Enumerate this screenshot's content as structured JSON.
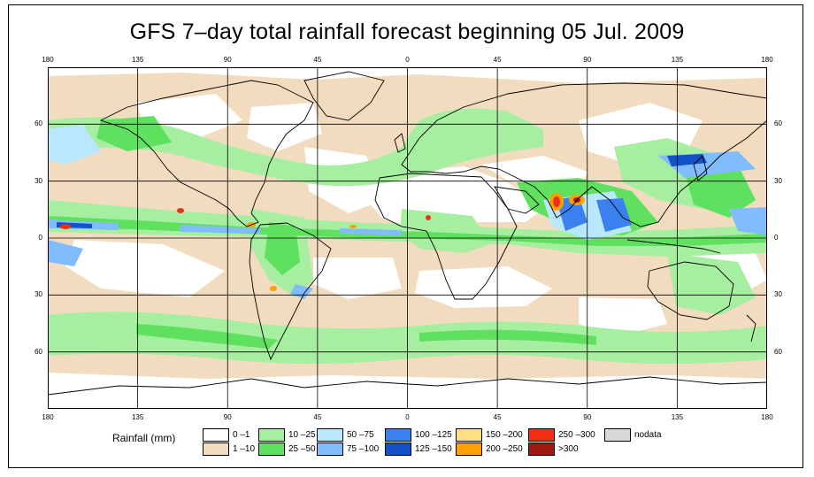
{
  "title": "GFS 7–day total rainfall forecast beginning 05 Jul. 2009",
  "lon_ticks": [
    "180",
    "135",
    "90",
    "45",
    "0",
    "45",
    "90",
    "135",
    "180"
  ],
  "lat_ticks": [
    "60",
    "30",
    "0",
    "30",
    "60"
  ],
  "lon_values": [
    -180,
    -135,
    -90,
    -45,
    0,
    45,
    90,
    135,
    180
  ],
  "lat_values": [
    60,
    30,
    0,
    -30,
    -60
  ],
  "map_extent": {
    "lon": [
      -180,
      180
    ],
    "lat": [
      -90,
      90
    ]
  },
  "grid": true,
  "legend": {
    "title": "Rainfall (mm)",
    "items": [
      {
        "label": "0 –1",
        "color": "#ffffff"
      },
      {
        "label": "1 –10",
        "color": "#f2dcbf"
      },
      {
        "label": "10 –25",
        "color": "#a6eea0"
      },
      {
        "label": "25 –50",
        "color": "#5fe05f"
      },
      {
        "label": "50 –75",
        "color": "#b8e8ff"
      },
      {
        "label": "75 –100",
        "color": "#80bcff"
      },
      {
        "label": "100 –125",
        "color": "#3a80ee"
      },
      {
        "label": "125 –150",
        "color": "#1450c8"
      },
      {
        "label": "150 –200",
        "color": "#ffe080"
      },
      {
        "label": "200 –250",
        "color": "#ffa000"
      },
      {
        "label": "250 –300",
        "color": "#f03010"
      },
      {
        "label": ">300",
        "color": "#a01a10"
      },
      {
        "label": "nodata",
        "color": "#d8d8d8"
      }
    ]
  }
}
